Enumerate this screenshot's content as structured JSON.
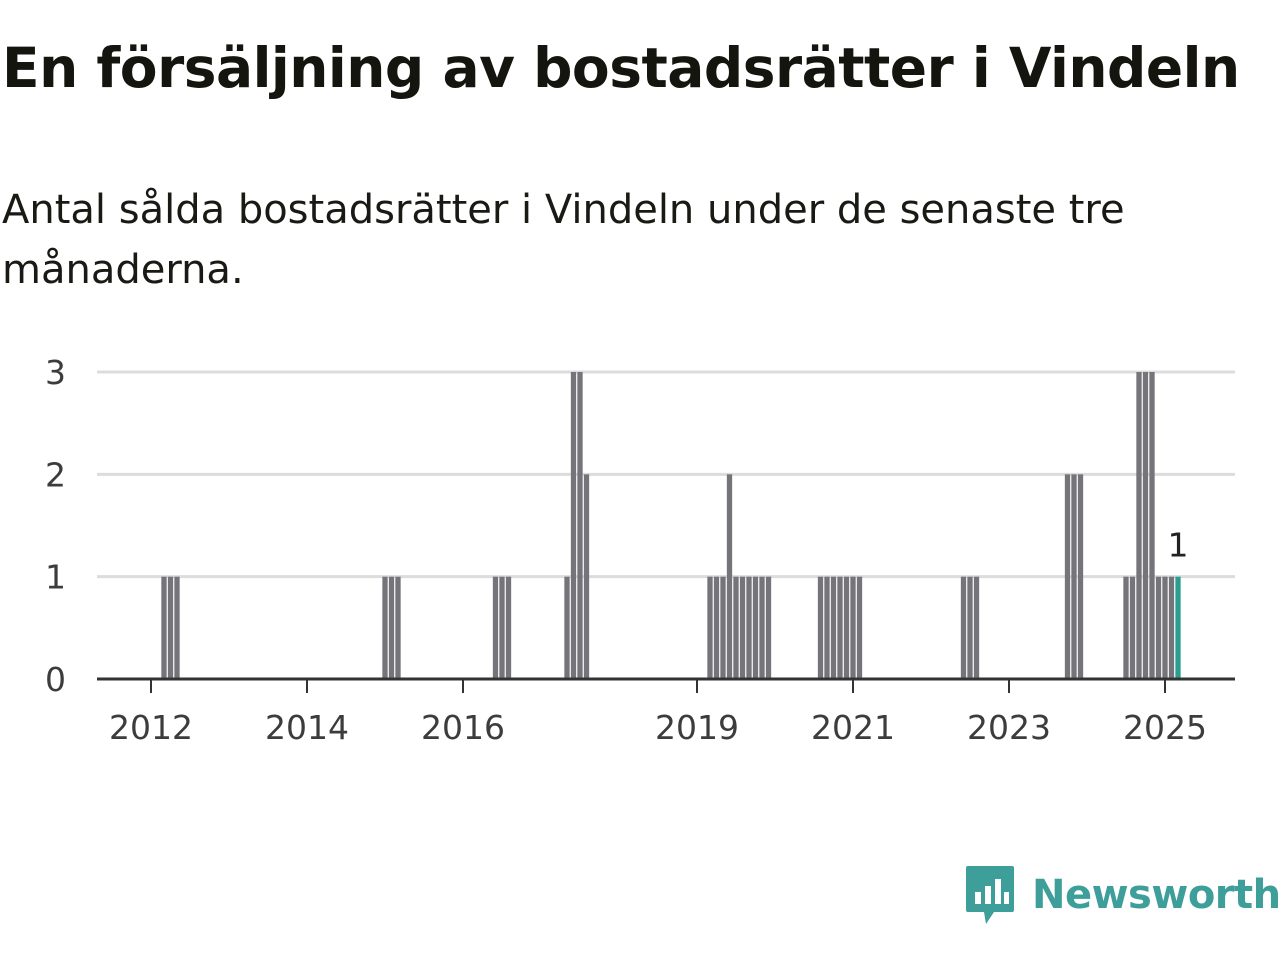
{
  "header": {
    "title": "En försäljning av bostadsrätter i Vindeln",
    "subtitle": "Antal sålda bostadsrätter i Vindeln under de senaste tre månaderna."
  },
  "brand": {
    "name": "Newsworthy",
    "color": "#3d9e9a",
    "icon": "newsworthy-logo-icon"
  },
  "chart_data": {
    "type": "bar",
    "title": "En försäljning av bostadsrätter i Vindeln",
    "subtitle": "Antal sålda bostadsrätter i Vindeln under de senaste tre månaderna.",
    "xlabel": "",
    "ylabel": "",
    "ylim": [
      0,
      3
    ],
    "yticks": [
      "0",
      "1",
      "2",
      "3"
    ],
    "xticks": [
      "2012",
      "2014",
      "2016",
      "2019",
      "2021",
      "2023",
      "2025"
    ],
    "grid": true,
    "legend": "none",
    "bar_color": "#74747a",
    "highlight_color": "#2a9d8f",
    "highlight_label": "1",
    "series": [
      {
        "values": [
          [
            "2012-03",
            1
          ],
          [
            "2012-04",
            1
          ],
          [
            "2012-05",
            1
          ],
          [
            "2015-01",
            1
          ],
          [
            "2015-02",
            1
          ],
          [
            "2015-03",
            1
          ],
          [
            "2016-06",
            1
          ],
          [
            "2016-07",
            1
          ],
          [
            "2016-08",
            1
          ],
          [
            "2017-05",
            1
          ],
          [
            "2017-06",
            3
          ],
          [
            "2017-07",
            3
          ],
          [
            "2017-08",
            2
          ],
          [
            "2019-03",
            1
          ],
          [
            "2019-04",
            1
          ],
          [
            "2019-05",
            1
          ],
          [
            "2019-06",
            2
          ],
          [
            "2019-07",
            1
          ],
          [
            "2019-08",
            1
          ],
          [
            "2019-09",
            1
          ],
          [
            "2019-10",
            1
          ],
          [
            "2019-11",
            1
          ],
          [
            "2019-12",
            1
          ],
          [
            "2020-08",
            1
          ],
          [
            "2020-09",
            1
          ],
          [
            "2020-10",
            1
          ],
          [
            "2020-11",
            1
          ],
          [
            "2020-12",
            1
          ],
          [
            "2021-01",
            1
          ],
          [
            "2021-02",
            1
          ],
          [
            "2022-06",
            1
          ],
          [
            "2022-07",
            1
          ],
          [
            "2022-08",
            1
          ],
          [
            "2023-10",
            2
          ],
          [
            "2023-11",
            2
          ],
          [
            "2023-12",
            2
          ],
          [
            "2024-07",
            1
          ],
          [
            "2024-08",
            1
          ],
          [
            "2024-09",
            3
          ],
          [
            "2024-10",
            3
          ],
          [
            "2024-11",
            3
          ],
          [
            "2024-12",
            1
          ],
          [
            "2025-01",
            1
          ],
          [
            "2025-02",
            1
          ],
          [
            "2025-03",
            1
          ]
        ],
        "highlight": "2025-03"
      }
    ]
  }
}
